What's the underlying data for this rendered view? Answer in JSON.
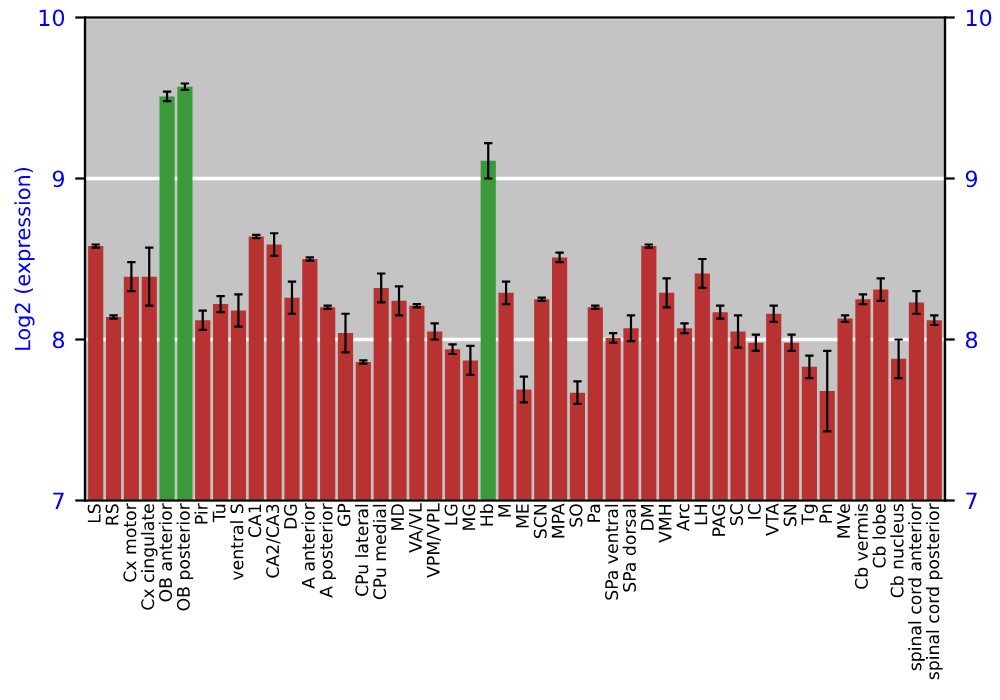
{
  "chart_data": {
    "type": "bar",
    "ylabel": "Log2 (expression)",
    "categories": [
      "LS",
      "RS",
      "Cx motor",
      "Cx cingulate",
      "OB anterior",
      "OB posterior",
      "Pir",
      "Tu",
      "ventral S",
      "CA1",
      "CA2/CA3",
      "DG",
      "A anterior",
      "A posterior",
      "GP",
      "CPu lateral",
      "CPu medial",
      "MD",
      "VA/VL",
      "VPM/VPL",
      "LG",
      "MG",
      "Hb",
      "M",
      "ME",
      "SCN",
      "MPA",
      "SO",
      "Pa",
      "SPa ventral",
      "SPa dorsal",
      "DM",
      "VMH",
      "Arc",
      "LH",
      "PAG",
      "SC",
      "IC",
      "VTA",
      "SN",
      "Tg",
      "Pn",
      "MVe",
      "Cb vermis",
      "Cb lobe",
      "Cb nucleus",
      "spinal cord anterior",
      "spinal cord posterior"
    ],
    "values": [
      8.58,
      8.14,
      8.39,
      8.39,
      9.51,
      9.57,
      8.12,
      8.22,
      8.18,
      8.64,
      8.59,
      8.26,
      8.5,
      8.2,
      8.04,
      7.86,
      8.32,
      8.24,
      8.21,
      8.05,
      7.94,
      7.87,
      9.11,
      8.29,
      7.69,
      8.25,
      8.51,
      7.67,
      8.2,
      8.01,
      8.07,
      8.58,
      8.29,
      8.07,
      8.41,
      8.17,
      8.05,
      7.98,
      8.16,
      7.98,
      7.83,
      7.68,
      8.13,
      8.25,
      8.31,
      7.88,
      8.23,
      8.12
    ],
    "errors": [
      0.01,
      0.01,
      0.09,
      0.18,
      0.03,
      0.02,
      0.06,
      0.05,
      0.1,
      0.01,
      0.07,
      0.1,
      0.01,
      0.01,
      0.12,
      0.01,
      0.09,
      0.09,
      0.01,
      0.05,
      0.03,
      0.09,
      0.11,
      0.07,
      0.08,
      0.01,
      0.03,
      0.07,
      0.01,
      0.03,
      0.08,
      0.01,
      0.09,
      0.03,
      0.09,
      0.04,
      0.1,
      0.05,
      0.05,
      0.05,
      0.07,
      0.25,
      0.02,
      0.03,
      0.07,
      0.12,
      0.07,
      0.03
    ],
    "colors": [
      "#b83232",
      "#b83232",
      "#b83232",
      "#b83232",
      "#3a9a3a",
      "#3a9a3a",
      "#b83232",
      "#b83232",
      "#b83232",
      "#b83232",
      "#b83232",
      "#b83232",
      "#b83232",
      "#b83232",
      "#b83232",
      "#b83232",
      "#b83232",
      "#b83232",
      "#b83232",
      "#b83232",
      "#b83232",
      "#b83232",
      "#3a9a3a",
      "#b83232",
      "#b83232",
      "#b83232",
      "#b83232",
      "#b83232",
      "#b83232",
      "#b83232",
      "#b83232",
      "#b83232",
      "#b83232",
      "#b83232",
      "#b83232",
      "#b83232",
      "#b83232",
      "#b83232",
      "#b83232",
      "#b83232",
      "#b83232",
      "#b83232",
      "#b83232",
      "#b83232",
      "#b83232",
      "#b83232",
      "#b83232",
      "#b83232"
    ],
    "ylim": [
      7,
      10
    ],
    "yticks": [
      7,
      8,
      9,
      10
    ],
    "y2lim": [
      7,
      10
    ],
    "y2ticks": [
      7,
      8,
      9,
      10
    ],
    "grid": "y",
    "legend": false
  }
}
